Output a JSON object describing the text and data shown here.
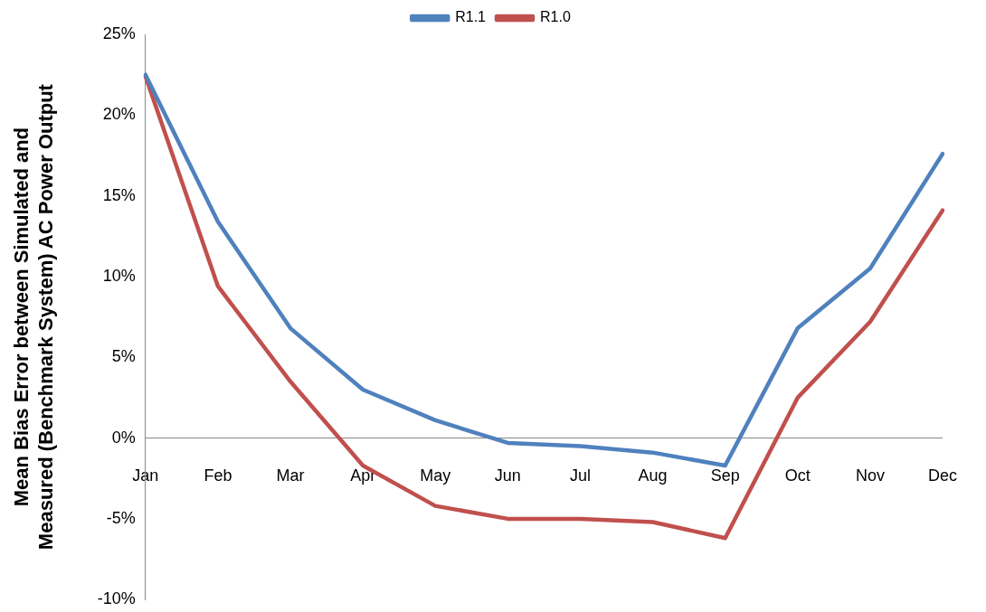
{
  "chart_data": {
    "type": "line",
    "ylabel": "Mean Bias Error between Simulated and Measured (Benchmark System) AC Power Output",
    "categories": [
      "Jan",
      "Feb",
      "Mar",
      "Apr",
      "May",
      "Jun",
      "Jul",
      "Aug",
      "Sep",
      "Oct",
      "Nov",
      "Dec"
    ],
    "series": [
      {
        "name": "R1.1",
        "color": "#4f81bd",
        "values": [
          22.5,
          13.4,
          6.8,
          3.0,
          1.1,
          -0.3,
          -0.5,
          -0.9,
          -1.7,
          6.8,
          10.5,
          17.6
        ]
      },
      {
        "name": "R1.0",
        "color": "#c0504d",
        "values": [
          22.4,
          9.4,
          3.5,
          -1.7,
          -4.2,
          -5.0,
          -5.0,
          -5.2,
          -6.2,
          2.5,
          7.2,
          14.1
        ]
      }
    ],
    "ylim": [
      -10,
      25
    ],
    "yticks": [
      {
        "value": -10,
        "label": "-10%"
      },
      {
        "value": -5,
        "label": "-5%"
      },
      {
        "value": 0,
        "label": "0%"
      },
      {
        "value": 5,
        "label": "5%"
      },
      {
        "value": 10,
        "label": "10%"
      },
      {
        "value": 15,
        "label": "15%"
      },
      {
        "value": 20,
        "label": "20%"
      },
      {
        "value": 25,
        "label": "25%"
      }
    ],
    "grid": false,
    "legend": "top",
    "marker": "none",
    "line_style": "solid"
  }
}
